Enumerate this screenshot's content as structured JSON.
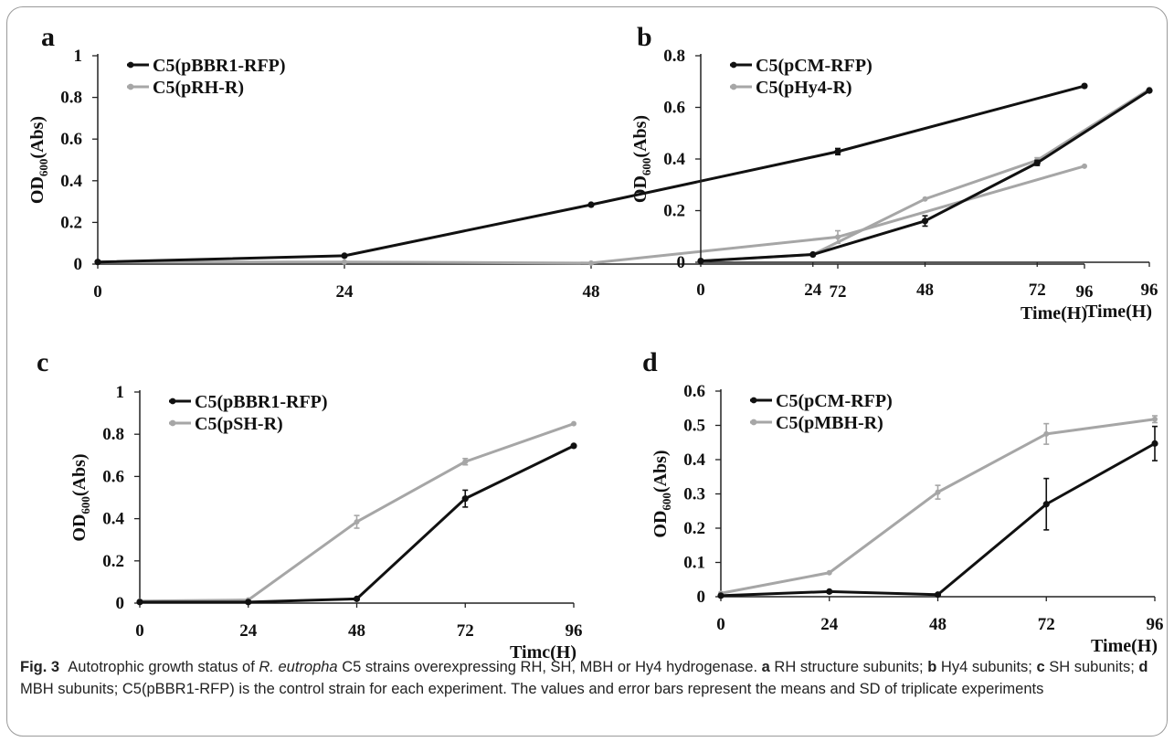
{
  "caption": {
    "fig_label": "Fig. 3",
    "t1": "Autotrophic growth status of ",
    "organism": "R. eutropha",
    "t2": " C5 strains overexpressing RH, SH, MBH or Hy4 hydrogenase. ",
    "a": "a",
    "a_text": " RH structure subunits; ",
    "b": "b",
    "b_text": " Hy4 subunits; ",
    "c": "c",
    "c_text": " SH subunits; ",
    "d": "d",
    "d_text": " MBH subunits; C5(pBBR1-RFP) is the control strain for each experiment. The values and error bars represent the means and SD of triplicate experiments"
  },
  "colors": {
    "dark": "#111111",
    "light": "#a6a6a6",
    "axis": "#222222"
  },
  "chart_data": [
    {
      "panel": "a",
      "type": "line",
      "x": [
        0,
        24,
        48,
        72,
        96
      ],
      "ylabel_main": "OD",
      "ylabel_sub": "600",
      "ylabel_tail": "(Abs)",
      "xlabel": "Time(H)",
      "ylim": [
        0,
        1
      ],
      "yticks": [
        "0",
        "0.2",
        "0.4",
        "0.6",
        "0.8",
        "1"
      ],
      "xticks": [
        "0",
        "24",
        "48",
        "72",
        "96"
      ],
      "legend_position": "top-left",
      "series": [
        {
          "name": "C5(pBBR1-RFP)",
          "color": "dark",
          "values": [
            0.01,
            0.04,
            0.285,
            0.54,
            0.855
          ],
          "err": [
            0,
            0,
            0,
            0.015,
            0
          ]
        },
        {
          "name": "C5(pRH-R)",
          "color": "light",
          "values": [
            0.01,
            0.01,
            0.005,
            0.13,
            0.47
          ],
          "err": [
            0,
            0,
            0,
            0.03,
            0
          ]
        }
      ]
    },
    {
      "panel": "b",
      "type": "line",
      "x": [
        0,
        24,
        48,
        72,
        96
      ],
      "ylabel_main": "OD",
      "ylabel_sub": "600",
      "ylabel_tail": "(Abs)",
      "xlabel": "Time(H)",
      "ylim": [
        0,
        0.8
      ],
      "yticks": [
        "0",
        "0.2",
        "0.4",
        "0.6",
        "0.8"
      ],
      "xticks": [
        "0",
        "24",
        "48",
        "72",
        "96"
      ],
      "legend_position": "top-left",
      "series": [
        {
          "name": "C5(pCM-RFP)",
          "color": "dark",
          "values": [
            0.005,
            0.03,
            0.16,
            0.385,
            0.665
          ],
          "err": [
            0,
            0,
            0.02,
            0.01,
            0
          ]
        },
        {
          "name": "C5(pHy4-R)",
          "color": "light",
          "values": [
            0.005,
            0.03,
            0.245,
            0.395,
            0.67
          ],
          "err": [
            0,
            0,
            0,
            0.01,
            0
          ]
        }
      ]
    },
    {
      "panel": "c",
      "type": "line",
      "x": [
        0,
        24,
        48,
        72,
        96
      ],
      "ylabel_main": "OD",
      "ylabel_sub": "600",
      "ylabel_tail": "(Abs)",
      "xlabel": "Timc(H)",
      "ylim": [
        0,
        1
      ],
      "yticks": [
        "0",
        "0.2",
        "0.4",
        "0.6",
        "0.8",
        "1"
      ],
      "xticks": [
        "0",
        "24",
        "48",
        "72",
        "96"
      ],
      "legend_position": "top-left",
      "series": [
        {
          "name": "C5(pBBR1-RFP)",
          "color": "dark",
          "values": [
            0.005,
            0.005,
            0.02,
            0.495,
            0.745
          ],
          "err": [
            0,
            0,
            0,
            0.04,
            0
          ]
        },
        {
          "name": "C5(pSH-R)",
          "color": "light",
          "values": [
            0.01,
            0.015,
            0.385,
            0.67,
            0.85
          ],
          "err": [
            0,
            0,
            0.03,
            0.015,
            0
          ]
        }
      ]
    },
    {
      "panel": "d",
      "type": "line",
      "x": [
        0,
        24,
        48,
        72,
        96
      ],
      "ylabel_main": "OD",
      "ylabel_sub": "600",
      "ylabel_tail": "(Abs)",
      "xlabel": "Time(H)",
      "ylim": [
        0,
        0.6
      ],
      "yticks": [
        "0",
        "0.1",
        "0.2",
        "0.3",
        "0.4",
        "0.5",
        "0.6"
      ],
      "xticks": [
        "0",
        "24",
        "48",
        "72",
        "96"
      ],
      "legend_position": "top-left",
      "series": [
        {
          "name": "C5(pCM-RFP)",
          "color": "dark",
          "values": [
            0.003,
            0.015,
            0.006,
            0.27,
            0.447
          ],
          "err": [
            0,
            0,
            0,
            0.075,
            0.05
          ]
        },
        {
          "name": "C5(pMBH-R)",
          "color": "light",
          "values": [
            0.01,
            0.07,
            0.305,
            0.475,
            0.518
          ],
          "err": [
            0,
            0,
            0.02,
            0.03,
            0.01
          ]
        }
      ]
    }
  ]
}
